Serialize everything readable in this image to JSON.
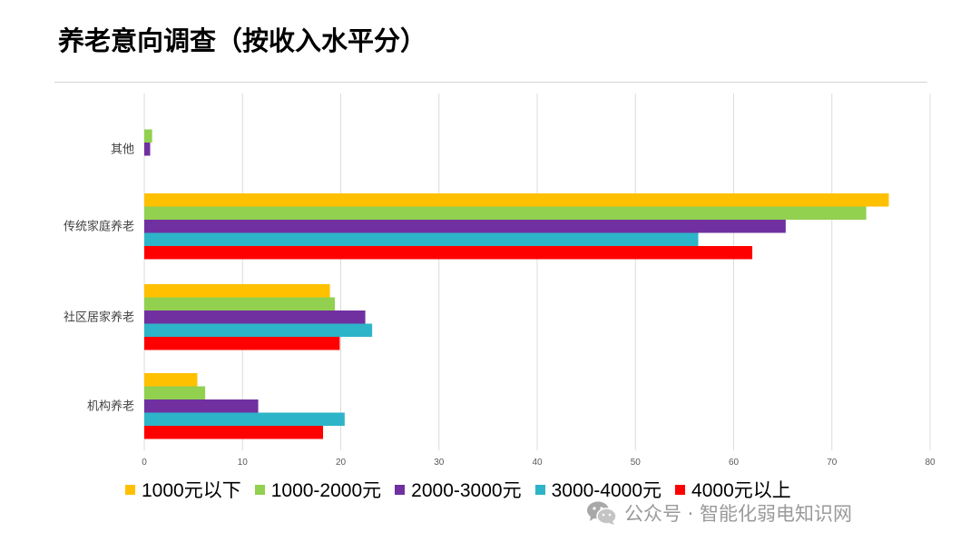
{
  "title": "养老意向调查（按收入水平分）",
  "watermark": "公众号 · 智能化弱电知识网",
  "colors": {
    "gridline": "#dcdcdc",
    "tick_text": "#595959",
    "category_text": "#404040"
  },
  "chart_data": {
    "type": "bar",
    "orientation": "horizontal",
    "title": "养老意向调查（按收入水平分）",
    "categories": [
      "其他",
      "传统家庭养老",
      "社区居家养老",
      "机构养老"
    ],
    "series": [
      {
        "name": "1000元以下",
        "color": "#FFC000",
        "values": [
          0,
          75.8,
          18.9,
          5.4
        ]
      },
      {
        "name": "1000-2000元",
        "color": "#92D050",
        "values": [
          0.8,
          73.5,
          19.4,
          6.2
        ]
      },
      {
        "name": "2000-3000元",
        "color": "#7030A0",
        "values": [
          0.6,
          65.3,
          22.5,
          11.6
        ]
      },
      {
        "name": "3000-4000元",
        "color": "#2EB4C8",
        "values": [
          0,
          56.4,
          23.2,
          20.4
        ]
      },
      {
        "name": "4000元以上",
        "color": "#FF0000",
        "values": [
          0,
          61.9,
          19.9,
          18.2
        ]
      }
    ],
    "xlim": [
      0,
      80
    ],
    "xticks": [
      0,
      10,
      20,
      30,
      40,
      50,
      60,
      70,
      80
    ],
    "grid": true,
    "legend_position": "bottom",
    "xlabel": "",
    "ylabel": ""
  }
}
